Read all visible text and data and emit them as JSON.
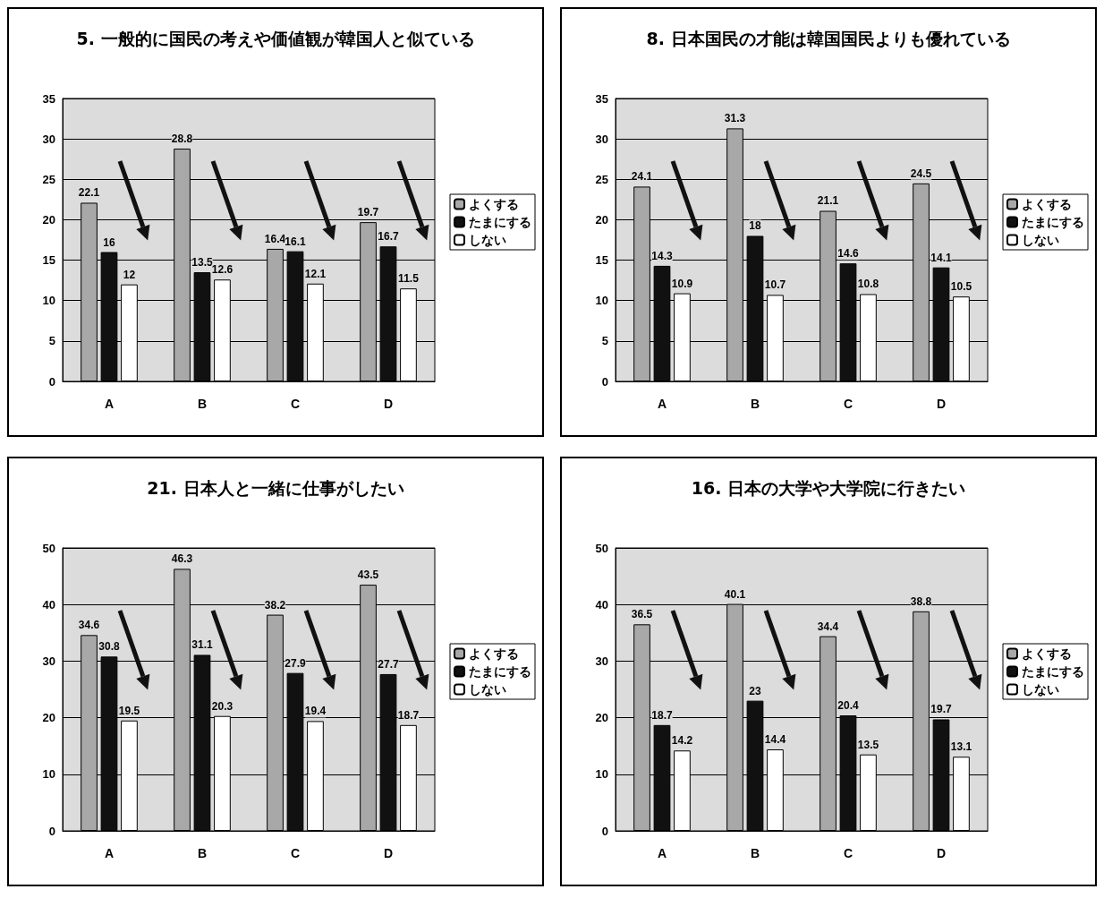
{
  "chart_data": [
    {
      "type": "bar",
      "title": "5. 一般的に国民の考えや価値観が韓国人と似ている",
      "categories": [
        "A",
        "B",
        "C",
        "D"
      ],
      "series": [
        {
          "name": "よくする",
          "color": "#a8a8a8",
          "values": [
            22.1,
            28.8,
            16.4,
            19.7
          ]
        },
        {
          "name": "たまにする",
          "color": "#111111",
          "values": [
            16,
            13.5,
            16.1,
            16.7
          ]
        },
        {
          "name": "しない",
          "color": "#ffffff",
          "values": [
            12,
            12.6,
            12.1,
            11.5
          ]
        }
      ],
      "ylim": [
        0,
        35
      ],
      "yticks": [
        0,
        5,
        10,
        15,
        20,
        25,
        30,
        35
      ],
      "grid": "y",
      "legend": "right",
      "data_labels": true
    },
    {
      "type": "bar",
      "title": "8. 日本国民の才能は韓国国民よりも優れている",
      "categories": [
        "A",
        "B",
        "C",
        "D"
      ],
      "series": [
        {
          "name": "よくする",
          "color": "#a8a8a8",
          "values": [
            24.1,
            31.3,
            21.1,
            24.5
          ]
        },
        {
          "name": "たまにする",
          "color": "#111111",
          "values": [
            14.3,
            18,
            14.6,
            14.1
          ]
        },
        {
          "name": "しない",
          "color": "#ffffff",
          "values": [
            10.9,
            10.7,
            10.8,
            10.5
          ]
        }
      ],
      "ylim": [
        0,
        35
      ],
      "yticks": [
        0,
        5,
        10,
        15,
        20,
        25,
        30,
        35
      ],
      "grid": "y",
      "legend": "right",
      "data_labels": true
    },
    {
      "type": "bar",
      "title": "21. 日本人と一緒に仕事がしたい",
      "categories": [
        "A",
        "B",
        "C",
        "D"
      ],
      "series": [
        {
          "name": "よくする",
          "color": "#a8a8a8",
          "values": [
            34.6,
            46.3,
            38.2,
            43.5
          ]
        },
        {
          "name": "たまにする",
          "color": "#111111",
          "values": [
            30.8,
            31.1,
            27.9,
            27.7
          ]
        },
        {
          "name": "しない",
          "color": "#ffffff",
          "values": [
            19.5,
            20.3,
            19.4,
            18.7
          ]
        }
      ],
      "ylim": [
        0,
        50
      ],
      "yticks": [
        0,
        10,
        20,
        30,
        40,
        50
      ],
      "grid": "y",
      "legend": "right",
      "data_labels": true
    },
    {
      "type": "bar",
      "title": "16. 日本の大学や大学院に行きたい",
      "categories": [
        "A",
        "B",
        "C",
        "D"
      ],
      "series": [
        {
          "name": "よくする",
          "color": "#a8a8a8",
          "values": [
            36.5,
            40.1,
            34.4,
            38.8
          ]
        },
        {
          "name": "たまにする",
          "color": "#111111",
          "values": [
            18.7,
            23,
            20.4,
            19.7
          ]
        },
        {
          "name": "しない",
          "color": "#ffffff",
          "values": [
            14.2,
            14.4,
            13.5,
            13.1
          ]
        }
      ],
      "ylim": [
        0,
        50
      ],
      "yticks": [
        0,
        10,
        20,
        30,
        40,
        50
      ],
      "grid": "y",
      "legend": "right",
      "data_labels": true
    }
  ]
}
